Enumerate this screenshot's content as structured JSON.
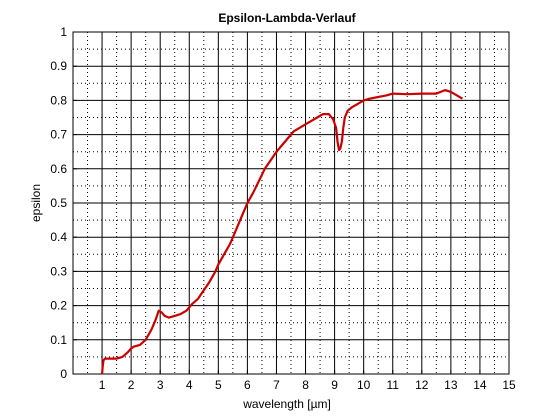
{
  "chart_data": {
    "type": "line",
    "title": "Epsilon-Lambda-Verlauf",
    "xlabel": "wavelength  [µm]",
    "ylabel": "epsilon",
    "xlim": [
      0,
      15
    ],
    "ylim": [
      0,
      1
    ],
    "xticks": [
      "1",
      "2",
      "3",
      "4",
      "5",
      "6",
      "7",
      "8",
      "9",
      "10",
      "11",
      "12",
      "13",
      "14",
      "15"
    ],
    "yticks": [
      "0",
      "0.1",
      "0.2",
      "0.3",
      "0.4",
      "0.5",
      "0.6",
      "0.7",
      "0.8",
      "0.9",
      "1"
    ],
    "grid": "major solid + minor dotted",
    "series_color": "#cc0000",
    "series": [
      {
        "x": [
          1.0,
          1.02,
          1.05,
          1.1,
          1.3,
          1.5,
          1.7,
          1.9,
          2.0,
          2.1,
          2.3,
          2.5,
          2.7,
          2.85,
          2.95,
          3.05,
          3.15,
          3.3,
          3.5,
          3.7,
          3.9,
          4.0,
          4.1,
          4.3,
          4.5,
          4.7,
          4.9,
          5.0,
          5.2,
          5.4,
          5.6,
          5.8,
          6.0,
          6.2,
          6.4,
          6.6,
          6.8,
          7.0,
          7.2,
          7.4,
          7.6,
          7.8,
          8.0,
          8.2,
          8.4,
          8.6,
          8.8,
          8.95,
          9.05,
          9.1,
          9.15,
          9.2,
          9.25,
          9.3,
          9.35,
          9.45,
          9.6,
          9.8,
          10.0,
          10.2,
          10.5,
          10.8,
          11.0,
          11.5,
          12.0,
          12.5,
          12.8,
          13.0,
          13.2,
          13.4
        ],
        "y": [
          0.0,
          0.02,
          0.04,
          0.045,
          0.045,
          0.045,
          0.05,
          0.065,
          0.075,
          0.08,
          0.085,
          0.1,
          0.13,
          0.16,
          0.185,
          0.18,
          0.17,
          0.165,
          0.17,
          0.175,
          0.185,
          0.195,
          0.205,
          0.22,
          0.245,
          0.27,
          0.3,
          0.32,
          0.35,
          0.38,
          0.42,
          0.46,
          0.5,
          0.53,
          0.565,
          0.6,
          0.625,
          0.65,
          0.67,
          0.69,
          0.71,
          0.72,
          0.73,
          0.74,
          0.75,
          0.76,
          0.76,
          0.745,
          0.72,
          0.68,
          0.655,
          0.66,
          0.68,
          0.72,
          0.75,
          0.77,
          0.78,
          0.79,
          0.8,
          0.805,
          0.81,
          0.815,
          0.82,
          0.818,
          0.82,
          0.82,
          0.83,
          0.825,
          0.815,
          0.805
        ]
      }
    ]
  }
}
